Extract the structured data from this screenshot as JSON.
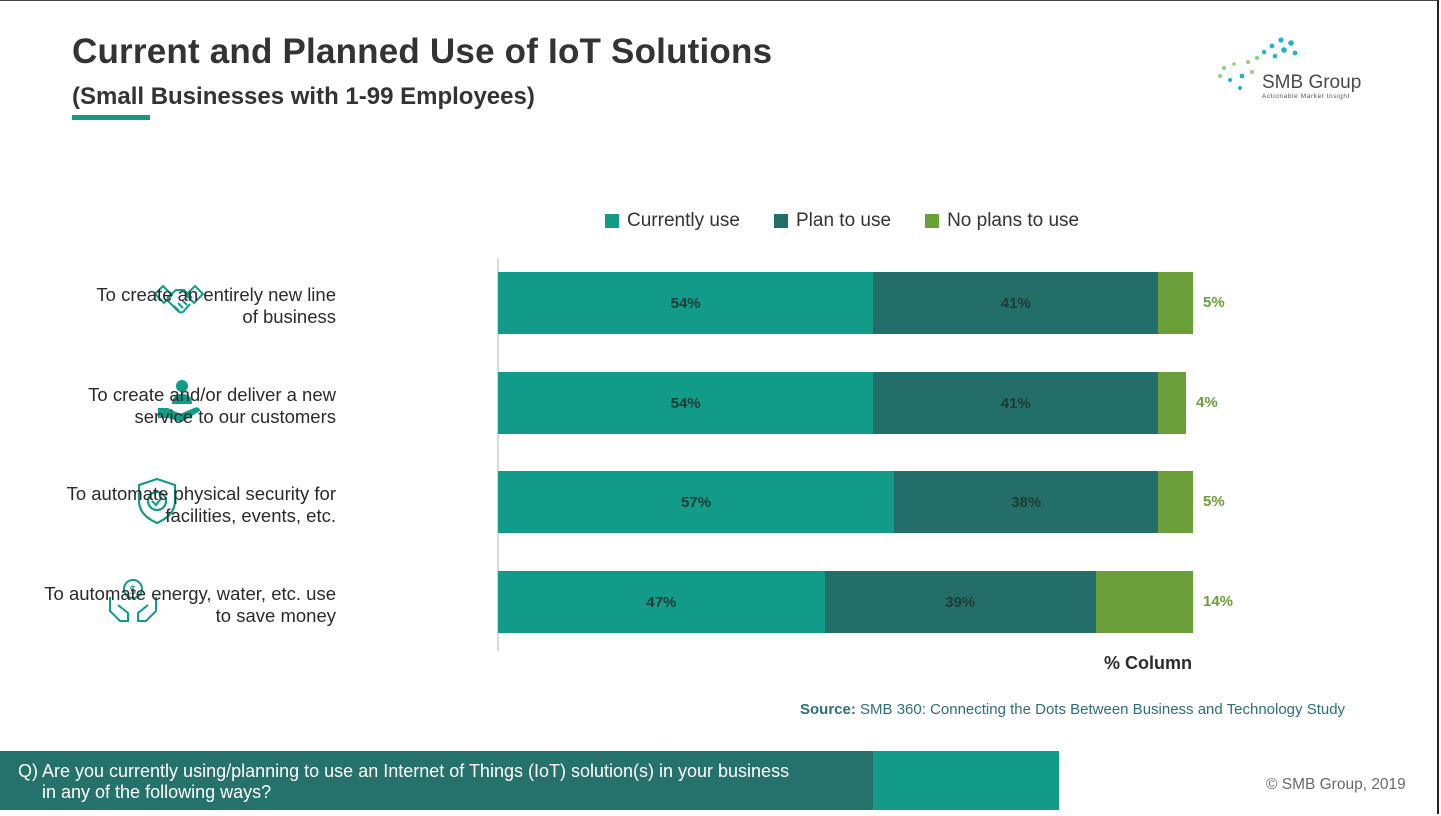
{
  "header": {
    "title": "Current and Planned Use of IoT Solutions",
    "subtitle": "(Small Businesses with 1-99 Employees)"
  },
  "logo": {
    "name": "SMB Group",
    "tagline": "Actionable Market Insight"
  },
  "colors": {
    "currently_use": "#119b88",
    "plan_to_use": "#246e6a",
    "no_plans": "#6a9e38",
    "accent": "#119b88"
  },
  "chart_data": {
    "type": "bar",
    "orientation": "horizontal",
    "stacked": true,
    "categories": [
      [
        "To create an entirely new line",
        "of business"
      ],
      [
        "To create and/or deliver a new",
        "service to our customers"
      ],
      [
        "To automate physical security for",
        "facilities, events, etc."
      ],
      [
        "To automate energy, water, etc. use",
        "to save money"
      ]
    ],
    "icons": [
      "handshake-icon",
      "service-hand-icon",
      "shield-check-icon",
      "money-hands-icon"
    ],
    "series": [
      {
        "name": "Currently use",
        "values": [
          54,
          54,
          57,
          47
        ],
        "labels": [
          "54%",
          "54%",
          "57%",
          "47%"
        ]
      },
      {
        "name": "Plan to use",
        "values": [
          41,
          41,
          38,
          39
        ],
        "labels": [
          "41%",
          "41%",
          "38%",
          "39%"
        ]
      },
      {
        "name": "No plans to use",
        "values": [
          5,
          4,
          5,
          14
        ],
        "labels": [
          "5%",
          "4%",
          "5%",
          "14%"
        ]
      }
    ],
    "xlabel": "% Column",
    "xlim": [
      0,
      100
    ],
    "grid": false,
    "legend": "top"
  },
  "source": {
    "label": "Source:",
    "text": " SMB 360: Connecting the Dots Between Business and Technology Study"
  },
  "question": {
    "line1": "Q) Are you currently using/planning to use an Internet of Things (IoT) solution(s) in your business",
    "line2": "in any of the following ways?"
  },
  "copyright": "© SMB Group, 2019"
}
